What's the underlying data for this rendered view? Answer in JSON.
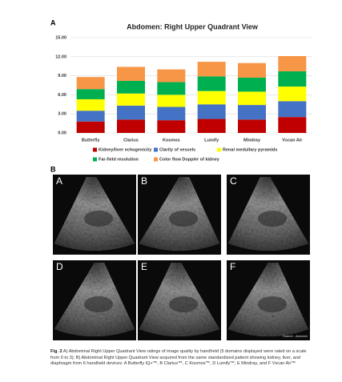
{
  "chart_data": {
    "type": "stacked-bar",
    "panel_label": "A",
    "title": "Abdomen: Right Upper Quadrant View",
    "categories": [
      "Butterfly",
      "Clarius",
      "Kosmos",
      "Lumify",
      "Mindray",
      "Vscan Air"
    ],
    "series": [
      {
        "name": "Kidney/liver echogenicity",
        "color": "#c00000",
        "values": [
          1.8,
          2.1,
          2.0,
          2.2,
          2.1,
          2.5
        ]
      },
      {
        "name": "Clarity of vessels",
        "color": "#4472c4",
        "values": [
          1.7,
          2.2,
          2.1,
          2.3,
          2.3,
          2.5
        ]
      },
      {
        "name": "Renal medullary pyramids",
        "color": "#ffff00",
        "values": [
          1.8,
          1.9,
          1.9,
          2.1,
          2.1,
          2.3
        ]
      },
      {
        "name": "Far-field resolution",
        "color": "#00b050",
        "values": [
          1.6,
          2.0,
          2.0,
          2.3,
          2.2,
          2.4
        ]
      },
      {
        "name": "Color flow Doppler of kidney",
        "color": "#f79646",
        "values": [
          1.9,
          2.2,
          2.0,
          2.3,
          2.3,
          2.4
        ]
      }
    ],
    "ylim": [
      0,
      15
    ],
    "yticks": [
      {
        "value": 0,
        "label": "0.00"
      },
      {
        "value": 3,
        "label": "3.00"
      },
      {
        "value": 6,
        "label": "6.00"
      },
      {
        "value": 9,
        "label": "9.00"
      },
      {
        "value": 12,
        "label": "12.00"
      },
      {
        "value": 15,
        "label": "15.00"
      }
    ],
    "grid": true,
    "legend": "bottom"
  },
  "figure": {
    "panel_label": "B",
    "images": [
      {
        "label": "A"
      },
      {
        "label": "B"
      },
      {
        "label": "C"
      },
      {
        "label": "D"
      },
      {
        "label": "E"
      },
      {
        "label": "F",
        "overlay": "Exam#1 - Abdomen"
      }
    ],
    "caption": {
      "label": "Fig. 2",
      "text": "A) Abdominal Right Upper Quadrant View ratings of image quality by handheld (5 domains displayed were rated on a scale from 0 to 3); B) Abdominal Right Upper Quadrant View acquired from the same standardized patient showing kidney, liver, and diaphragm from 6 handheld devices: A Butterfly iQ+™, B Clarius™, C Kosmos™, D Lumify™, E Mindray, and F Vscan Air™"
    }
  }
}
